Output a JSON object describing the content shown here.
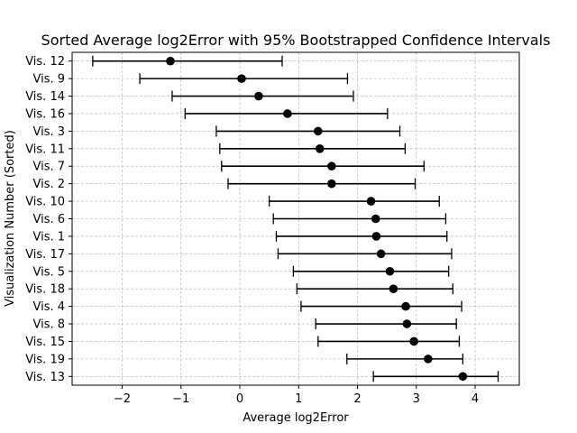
{
  "chart_data": {
    "type": "scatter",
    "title": "Sorted Average log2Error with 95% Bootstrapped Confidence Intervals",
    "xlabel": "Average log2Error",
    "ylabel": "Visualization Number (Sorted)",
    "xlim": [
      -2.85,
      4.75
    ],
    "x_ticks": [
      -2,
      -1,
      0,
      1,
      2,
      3,
      4
    ],
    "x_tick_labels": [
      "−2",
      "−1",
      "0",
      "1",
      "2",
      "3",
      "4"
    ],
    "grid": true,
    "grid_style": "dashed",
    "marker_color": "#000000",
    "points": [
      {
        "label": "Vis. 12",
        "mean": -1.18,
        "ci_low": -2.5,
        "ci_high": 0.72
      },
      {
        "label": "Vis. 9",
        "mean": 0.03,
        "ci_low": -1.7,
        "ci_high": 1.83
      },
      {
        "label": "Vis. 14",
        "mean": 0.32,
        "ci_low": -1.15,
        "ci_high": 1.93
      },
      {
        "label": "Vis. 16",
        "mean": 0.81,
        "ci_low": -0.93,
        "ci_high": 2.51
      },
      {
        "label": "Vis. 3",
        "mean": 1.33,
        "ci_low": -0.4,
        "ci_high": 2.72
      },
      {
        "label": "Vis. 11",
        "mean": 1.36,
        "ci_low": -0.34,
        "ci_high": 2.81
      },
      {
        "label": "Vis. 7",
        "mean": 1.56,
        "ci_low": -0.31,
        "ci_high": 3.13
      },
      {
        "label": "Vis. 2",
        "mean": 1.56,
        "ci_low": -0.2,
        "ci_high": 2.98
      },
      {
        "label": "Vis. 10",
        "mean": 2.23,
        "ci_low": 0.5,
        "ci_high": 3.39
      },
      {
        "label": "Vis. 6",
        "mean": 2.31,
        "ci_low": 0.57,
        "ci_high": 3.5
      },
      {
        "label": "Vis. 1",
        "mean": 2.32,
        "ci_low": 0.62,
        "ci_high": 3.52
      },
      {
        "label": "Vis. 17",
        "mean": 2.4,
        "ci_low": 0.65,
        "ci_high": 3.6
      },
      {
        "label": "Vis. 5",
        "mean": 2.55,
        "ci_low": 0.91,
        "ci_high": 3.55
      },
      {
        "label": "Vis. 18",
        "mean": 2.61,
        "ci_low": 0.97,
        "ci_high": 3.62
      },
      {
        "label": "Vis. 4",
        "mean": 2.82,
        "ci_low": 1.04,
        "ci_high": 3.77
      },
      {
        "label": "Vis. 8",
        "mean": 2.84,
        "ci_low": 1.29,
        "ci_high": 3.68
      },
      {
        "label": "Vis. 15",
        "mean": 2.96,
        "ci_low": 1.33,
        "ci_high": 3.73
      },
      {
        "label": "Vis. 19",
        "mean": 3.2,
        "ci_low": 1.82,
        "ci_high": 3.79
      },
      {
        "label": "Vis. 13",
        "mean": 3.79,
        "ci_low": 2.27,
        "ci_high": 4.39
      }
    ]
  }
}
